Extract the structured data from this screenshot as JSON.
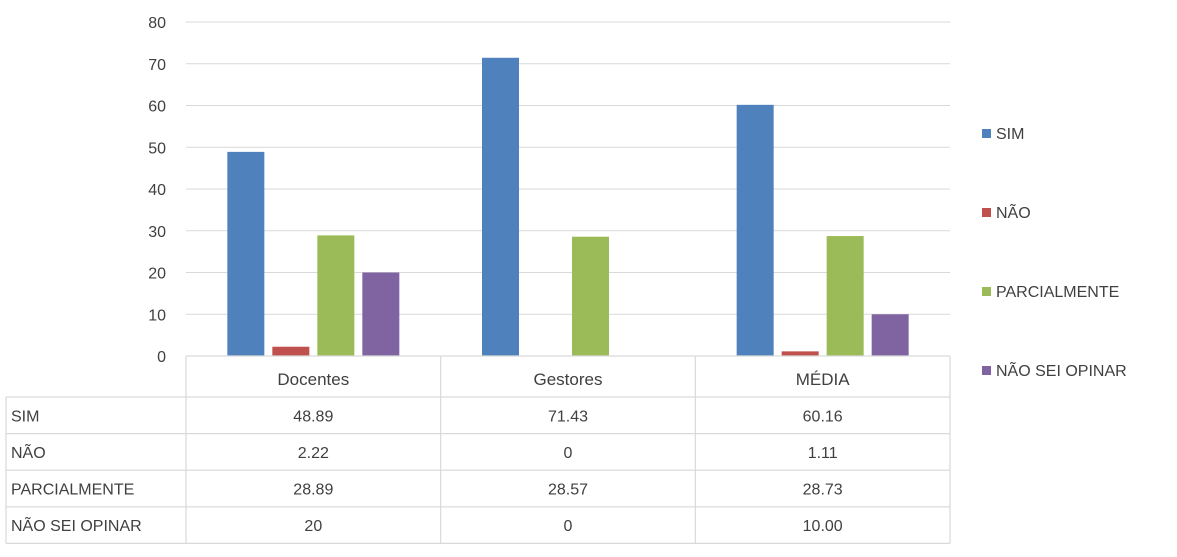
{
  "chart_data": {
    "type": "bar",
    "categories": [
      "Docentes",
      "Gestores",
      "MÉDIA"
    ],
    "y_ticks": [
      "0",
      "10",
      "20",
      "30",
      "40",
      "50",
      "60",
      "70",
      "80"
    ],
    "ylim": [
      0,
      80
    ],
    "grid": true,
    "legend_position": "right",
    "series": [
      {
        "name": "SIM",
        "color": "#4F81BD",
        "values": [
          48.89,
          71.43,
          60.16
        ],
        "labels": [
          "48.89",
          "71.43",
          "60.16"
        ]
      },
      {
        "name": "NÃO",
        "color": "#C0504D",
        "values": [
          2.22,
          0,
          1.11
        ],
        "labels": [
          "2.22",
          "0",
          "1.11"
        ]
      },
      {
        "name": "PARCIALMENTE",
        "color": "#9BBB59",
        "values": [
          28.89,
          28.57,
          28.73
        ],
        "labels": [
          "28.89",
          "28.57",
          "28.73"
        ]
      },
      {
        "name": "NÃO SEI OPINAR",
        "color": "#8064A2",
        "values": [
          20,
          0,
          10.0
        ],
        "labels": [
          "20",
          "0",
          "10.00"
        ]
      }
    ]
  }
}
